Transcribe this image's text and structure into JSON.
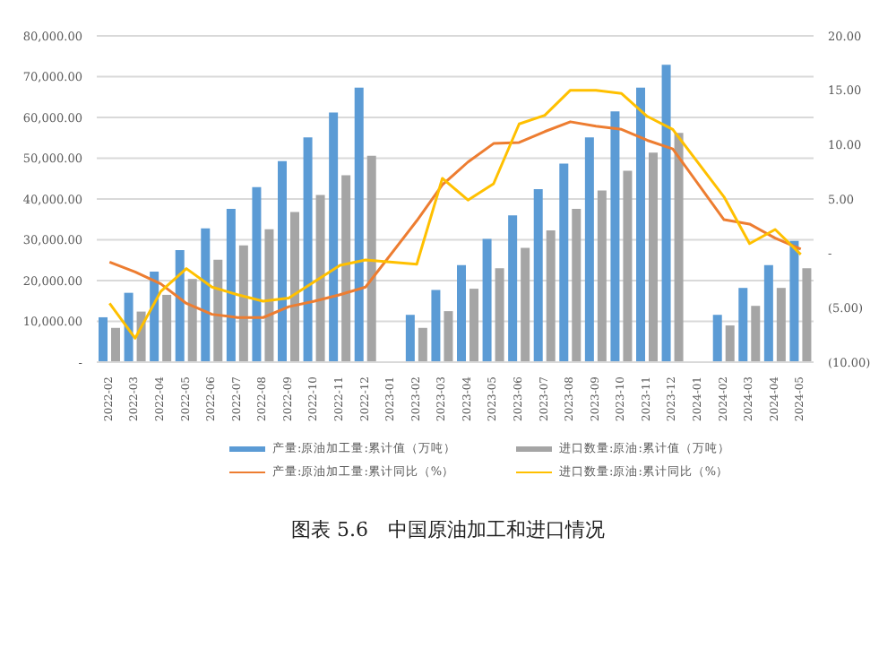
{
  "chart_data": {
    "type": "bar",
    "title": "图表 5.6　中国原油加工和进口情况",
    "categories": [
      "2022-02",
      "2022-03",
      "2022-04",
      "2022-05",
      "2022-06",
      "2022-07",
      "2022-08",
      "2022-09",
      "2022-10",
      "2022-11",
      "2022-12",
      "2023-01",
      "2023-02",
      "2023-03",
      "2023-04",
      "2023-05",
      "2023-06",
      "2023-07",
      "2023-08",
      "2023-09",
      "2023-10",
      "2023-11",
      "2023-12",
      "2024-01",
      "2024-02",
      "2024-03",
      "2024-04",
      "2024-05"
    ],
    "series": [
      {
        "name": "产量:原油加工量:累计值（万吨）",
        "color": "#5b9bd5",
        "values": [
          11000,
          17000,
          22200,
          27500,
          32800,
          37600,
          42900,
          49300,
          55100,
          61200,
          67300,
          null,
          11600,
          17700,
          23800,
          30200,
          36000,
          42400,
          48700,
          55100,
          61500,
          67300,
          72900,
          null,
          11600,
          18200,
          23800,
          29700
        ]
      },
      {
        "name": "进口数量:原油:累计值（万吨）",
        "color": "#a5a5a5",
        "values": [
          8400,
          12400,
          16500,
          20400,
          25100,
          28600,
          32600,
          36800,
          41000,
          45800,
          50600,
          null,
          8400,
          12500,
          18000,
          23000,
          28000,
          32300,
          37600,
          42100,
          46900,
          51400,
          56200,
          null,
          9000,
          13800,
          18200,
          23000
        ]
      },
      {
        "name": "产量:原油加工量:累计同比（%）",
        "type": "line",
        "axis": "y2",
        "color": "#ed7d31",
        "values": [
          -0.8,
          -1.7,
          -2.8,
          -4.6,
          -5.6,
          -5.9,
          -5.9,
          -4.9,
          -4.4,
          -3.8,
          -3.1,
          null,
          3.0,
          6.3,
          8.4,
          10.1,
          10.2,
          11.2,
          12.1,
          11.7,
          11.4,
          10.4,
          9.6,
          null,
          3.1,
          2.7,
          1.4,
          0.4
        ]
      },
      {
        "name": "进口数量:原油:累计同比（%）",
        "type": "line",
        "axis": "y2",
        "color": "#ffc000",
        "values": [
          -4.6,
          -7.8,
          -3.5,
          -1.4,
          -3.1,
          -3.8,
          -4.4,
          -4.1,
          -2.6,
          -1.1,
          -0.6,
          null,
          -1.0,
          6.9,
          4.9,
          6.4,
          11.9,
          12.7,
          15.0,
          15.0,
          14.7,
          12.6,
          11.4,
          null,
          5.2,
          0.9,
          2.2,
          -0.1
        ]
      }
    ],
    "ylim": [
      0,
      80000
    ],
    "yticks": [
      {
        "value": 0,
        "label": "-"
      },
      {
        "value": 10000,
        "label": "10,000.00"
      },
      {
        "value": 20000,
        "label": "20,000.00"
      },
      {
        "value": 30000,
        "label": "30,000.00"
      },
      {
        "value": 40000,
        "label": "40,000.00"
      },
      {
        "value": 50000,
        "label": "50,000.00"
      },
      {
        "value": 60000,
        "label": "60,000.00"
      },
      {
        "value": 70000,
        "label": "70,000.00"
      },
      {
        "value": 80000,
        "label": "80,000.00"
      }
    ],
    "y2lim": [
      -10,
      20
    ],
    "y2ticks": [
      {
        "value": -10,
        "label": "(10.00)"
      },
      {
        "value": -5,
        "label": "(5.00)"
      },
      {
        "value": 0,
        "label": "-"
      },
      {
        "value": 5,
        "label": "5.00"
      },
      {
        "value": 10,
        "label": "10.00"
      },
      {
        "value": 15,
        "label": "15.00"
      },
      {
        "value": 20,
        "label": "20.00"
      }
    ],
    "grid": "y",
    "legend": "bottom",
    "marker": "none"
  }
}
